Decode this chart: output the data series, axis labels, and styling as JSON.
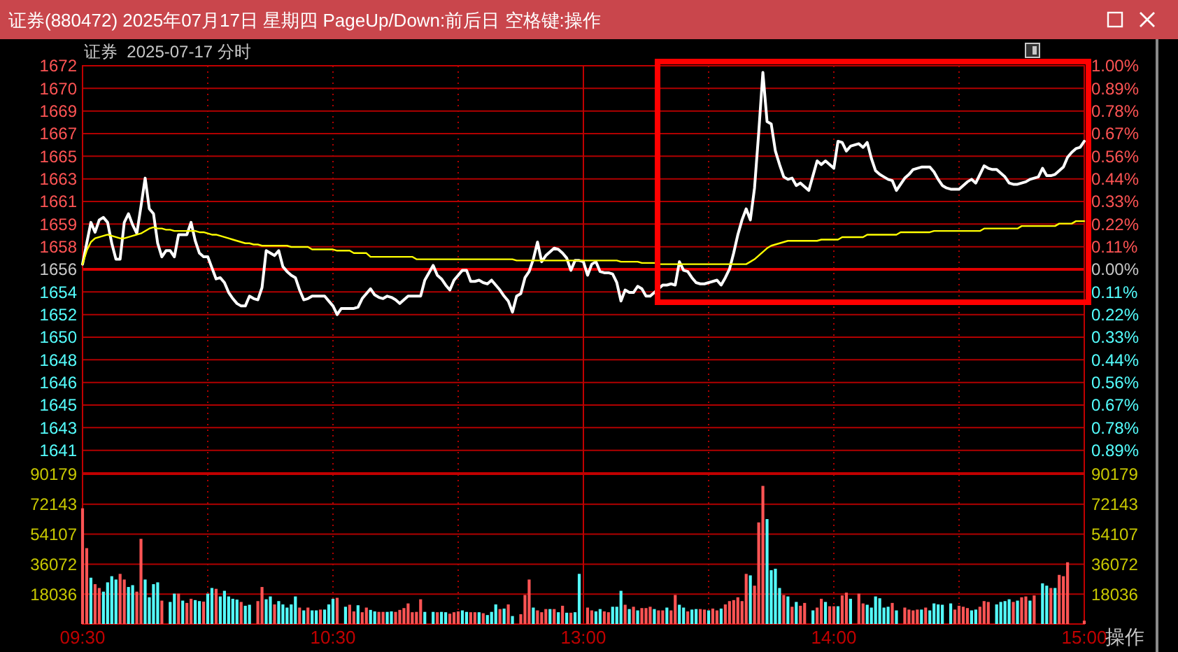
{
  "chart_data": [
    {
      "type": "line",
      "title": "证券(880472) 2025年07月17日 星期四 PageUp/Down:前后日 空格键:操作",
      "subtitle": "证券  2025-07-17 分时",
      "categories": [
        "09:30",
        null,
        null,
        null,
        null,
        null,
        null,
        null,
        null,
        null,
        null,
        null,
        null,
        null,
        null,
        null,
        null,
        null,
        null,
        null,
        null,
        null,
        null,
        null,
        null,
        null,
        null,
        null,
        null,
        null,
        null,
        null,
        null,
        null,
        null,
        null,
        null,
        null,
        null,
        null,
        null,
        null,
        null,
        null,
        null,
        null,
        null,
        null,
        null,
        null,
        null,
        null,
        null,
        null,
        null,
        null,
        null,
        null,
        null,
        null,
        "10:30",
        null,
        null,
        null,
        null,
        null,
        null,
        null,
        null,
        null,
        null,
        null,
        null,
        null,
        null,
        null,
        null,
        null,
        null,
        null,
        null,
        null,
        null,
        null,
        null,
        null,
        null,
        null,
        null,
        null,
        null,
        null,
        null,
        null,
        null,
        null,
        null,
        null,
        null,
        null,
        null,
        null,
        null,
        null,
        null,
        null,
        null,
        null,
        null,
        null,
        null,
        null,
        null,
        null,
        null,
        null,
        null,
        null,
        null,
        null,
        "13:00",
        null,
        null,
        null,
        null,
        null,
        null,
        null,
        null,
        null,
        null,
        null,
        null,
        null,
        null,
        null,
        null,
        null,
        null,
        null,
        null,
        null,
        null,
        null,
        null,
        null,
        null,
        null,
        null,
        null,
        null,
        null,
        null,
        null,
        null,
        null,
        null,
        null,
        null,
        null,
        null,
        null,
        null,
        null,
        null,
        null,
        null,
        null,
        null,
        null,
        null,
        null,
        null,
        null,
        null,
        null,
        null,
        null,
        null,
        null,
        "14:00",
        null,
        null,
        null,
        null,
        null,
        null,
        null,
        null,
        null,
        null,
        null,
        null,
        null,
        null,
        null,
        null,
        null,
        null,
        null,
        null,
        null,
        null,
        null,
        null,
        null,
        null,
        null,
        null,
        null,
        null,
        null,
        null,
        null,
        null,
        null,
        null,
        null,
        null,
        null,
        null,
        null,
        null,
        null,
        null,
        null,
        null,
        null,
        null,
        null,
        null,
        null,
        null,
        null,
        null,
        null,
        null,
        null,
        null,
        null,
        "15:00"
      ],
      "series": [
        {
          "color": "#ffffff",
          "values": [
            1656.1,
            1657.8,
            1659.5,
            1658.7,
            1659.7,
            1659.9,
            1659.5,
            1657.8,
            1656.5,
            1656.5,
            1659.5,
            1660.2,
            1659.3,
            1658.6,
            1660.8,
            1663.1,
            1660.6,
            1660.2,
            1657.8,
            1656.7,
            1657.2,
            1657.2,
            1656.7,
            1658.5,
            1658.5,
            1658.5,
            1659.5,
            1658,
            1657,
            1656.7,
            1656.7,
            1655.8,
            1654.9,
            1655,
            1654.6,
            1653.8,
            1653.3,
            1652.9,
            1652.7,
            1652.7,
            1653.5,
            1653.3,
            1653.2,
            1654.2,
            1657.2,
            1657,
            1656.8,
            1657.2,
            1655.9,
            1655.5,
            1655.2,
            1655,
            1654,
            1653.2,
            1653.3,
            1653.5,
            1653.5,
            1653.5,
            1653.5,
            1653.1,
            1652.7,
            1652,
            1652.5,
            1652.5,
            1652.5,
            1652.5,
            1652.6,
            1653.3,
            1653.7,
            1654.1,
            1653.6,
            1653.4,
            1653.3,
            1653.5,
            1653.4,
            1653.2,
            1652.9,
            1653.2,
            1653.5,
            1653.5,
            1653.5,
            1653.5,
            1654.8,
            1655.4,
            1656,
            1655.2,
            1654.9,
            1654.4,
            1654,
            1654.8,
            1655.2,
            1655.6,
            1655.6,
            1654.7,
            1654.7,
            1654.8,
            1654.6,
            1654.5,
            1654.8,
            1654.4,
            1654,
            1653.5,
            1653.1,
            1652.2,
            1653.5,
            1653.7,
            1655,
            1655.5,
            1656.5,
            1657.9,
            1656.3,
            1656.8,
            1657.1,
            1657.4,
            1657.3,
            1657,
            1656.6,
            1655.6,
            1656.4,
            1656.4,
            1656.3,
            1655.2,
            1656.1,
            1656.3,
            1655.5,
            1655.4,
            1655.4,
            1655.3,
            1654.6,
            1653.1,
            1654,
            1653.8,
            1653.8,
            1654.3,
            1654.1,
            1653.5,
            1653.5,
            1653.8,
            1654.1,
            1654.4,
            1654.4,
            1654.5,
            1654.4,
            1656.3,
            1655.6,
            1655.5,
            1655,
            1654.6,
            1654.5,
            1654.5,
            1654.6,
            1654.7,
            1654.8,
            1654.4,
            1655,
            1655.7,
            1657,
            1658.5,
            1659.7,
            1660.6,
            1659.7,
            1662.3,
            1666.8,
            1671.7,
            1667.7,
            1667.5,
            1665.3,
            1664.2,
            1663.2,
            1663,
            1663.1,
            1662.5,
            1662.7,
            1662.4,
            1662.1,
            1663.3,
            1664.5,
            1664.2,
            1664.5,
            1664.2,
            1663.9,
            1666.1,
            1666,
            1665.3,
            1665.7,
            1665.8,
            1665.9,
            1665.6,
            1666,
            1664.7,
            1663.7,
            1663.4,
            1663.2,
            1663,
            1662.9,
            1662.1,
            1662.6,
            1663.1,
            1663.4,
            1663.8,
            1663.9,
            1664,
            1664,
            1664,
            1663.6,
            1663,
            1662.5,
            1662.3,
            1662.2,
            1662.2,
            1662.2,
            1662.5,
            1662.8,
            1663,
            1662.7,
            1663.4,
            1664.1,
            1663.9,
            1663.8,
            1663.8,
            1663.5,
            1663.2,
            1662.7,
            1662.6,
            1662.6,
            1662.7,
            1662.8,
            1663,
            1663.1,
            1663.2,
            1663.9,
            1663.3,
            1663.3,
            1663.4,
            1663.7,
            1664,
            1664.8,
            1665.2,
            1665.5,
            1665.6,
            1666.1
          ]
        },
        {
          "color": "#ffff00",
          "values": [
            1656.1,
            1657.2,
            1657.9,
            1658.2,
            1658.3,
            1658.4,
            1658.5,
            1658.4,
            1658.3,
            1658.2,
            1658.2,
            1658.3,
            1658.4,
            1658.5,
            1658.6,
            1658.8,
            1659,
            1659.1,
            1659,
            1659,
            1658.9,
            1658.9,
            1658.8,
            1658.8,
            1658.8,
            1658.8,
            1658.8,
            1658.8,
            1658.7,
            1658.7,
            1658.6,
            1658.5,
            1658.5,
            1658.4,
            1658.3,
            1658.2,
            1658.1,
            1658,
            1657.9,
            1657.8,
            1657.8,
            1657.7,
            1657.7,
            1657.6,
            1657.6,
            1657.6,
            1657.6,
            1657.6,
            1657.6,
            1657.6,
            1657.5,
            1657.5,
            1657.5,
            1657.5,
            1657.5,
            1657.3,
            1657.3,
            1657.3,
            1657.3,
            1657.3,
            1657.3,
            1657.2,
            1657.2,
            1657.2,
            1657.2,
            1657,
            1657,
            1657,
            1657,
            1656.7,
            1656.7,
            1656.7,
            1656.7,
            1656.7,
            1656.7,
            1656.7,
            1656.7,
            1656.7,
            1656.7,
            1656.7,
            1656.5,
            1656.5,
            1656.5,
            1656.5,
            1656.5,
            1656.5,
            1656.5,
            1656.5,
            1656.5,
            1656.5,
            1656.5,
            1656.5,
            1656.5,
            1656.5,
            1656.5,
            1656.5,
            1656.5,
            1656.5,
            1656.5,
            1656.5,
            1656.5,
            1656.5,
            1656.5,
            1656.5,
            1656.4,
            1656.4,
            1656.4,
            1656.4,
            1656.4,
            1656.4,
            1656.4,
            1656.4,
            1656.4,
            1656.4,
            1656.4,
            1656.4,
            1656.4,
            1656.4,
            1656.4,
            1656.4,
            1656.4,
            1656.4,
            1656.4,
            1656.4,
            1656.4,
            1656.4,
            1656.4,
            1656.4,
            1656.4,
            1656.3,
            1656.3,
            1656.3,
            1656.3,
            1656.3,
            1656.2,
            1656.2,
            1656.2,
            1656.2,
            1656.1,
            1656.1,
            1656.1,
            1656.1,
            1656.1,
            1656.1,
            1656.1,
            1656.1,
            1656.1,
            1656.1,
            1656.1,
            1656.1,
            1656.1,
            1656.1,
            1656.1,
            1656.1,
            1656.1,
            1656.1,
            1656.1,
            1656.1,
            1656.1,
            1656.1,
            1656.3,
            1656.5,
            1656.8,
            1657.1,
            1657.4,
            1657.6,
            1657.7,
            1657.8,
            1657.9,
            1658,
            1658,
            1658,
            1658,
            1658,
            1658,
            1658,
            1658,
            1658.1,
            1658.1,
            1658.1,
            1658.1,
            1658.1,
            1658.3,
            1658.3,
            1658.3,
            1658.3,
            1658.3,
            1658.3,
            1658.5,
            1658.5,
            1658.5,
            1658.5,
            1658.5,
            1658.5,
            1658.5,
            1658.5,
            1658.7,
            1658.7,
            1658.7,
            1658.7,
            1658.7,
            1658.7,
            1658.7,
            1658.7,
            1658.8,
            1658.8,
            1658.8,
            1658.8,
            1658.8,
            1658.8,
            1658.8,
            1658.8,
            1658.8,
            1658.8,
            1658.8,
            1658.8,
            1659,
            1659,
            1659,
            1659,
            1659,
            1659,
            1659,
            1659,
            1659,
            1659.2,
            1659.2,
            1659.2,
            1659.2,
            1659.2,
            1659.2,
            1659.2,
            1659.2,
            1659.2,
            1659.4,
            1659.4,
            1659.4,
            1659.4,
            1659.6,
            1659.6,
            1659.6
          ]
        }
      ],
      "ylim": [
        1639.12,
        1672.24
      ],
      "yticks": [
        {
          "value": 1672.24,
          "label": "1672"
        },
        {
          "value": 1670.4,
          "label": "1670"
        },
        {
          "value": 1668.56,
          "label": "1669"
        },
        {
          "value": 1666.72,
          "label": "1667"
        },
        {
          "value": 1664.88,
          "label": "1665"
        },
        {
          "value": 1663.04,
          "label": "1663"
        },
        {
          "value": 1661.2,
          "label": "1661"
        },
        {
          "value": 1659.36,
          "label": "1659"
        },
        {
          "value": 1657.52,
          "label": "1658"
        },
        {
          "value": 1655.68,
          "label": "1656"
        },
        {
          "value": 1653.84,
          "label": "1654"
        },
        {
          "value": 1652.0,
          "label": "1652"
        },
        {
          "value": 1650.16,
          "label": "1650"
        },
        {
          "value": 1648.32,
          "label": "1648"
        },
        {
          "value": 1646.48,
          "label": "1646"
        },
        {
          "value": 1644.64,
          "label": "1645"
        },
        {
          "value": 1642.8,
          "label": "1643"
        },
        {
          "value": 1640.96,
          "label": "1641"
        }
      ],
      "y2lim": [
        -1,
        1
      ],
      "y2ticks": [
        {
          "value": 1,
          "label": "1.00%"
        },
        {
          "value": 0.8889,
          "label": "0.89%"
        },
        {
          "value": 0.7778,
          "label": "0.78%"
        },
        {
          "value": 0.6667,
          "label": "0.67%"
        },
        {
          "value": 0.5556,
          "label": "0.56%"
        },
        {
          "value": 0.4444,
          "label": "0.44%"
        },
        {
          "value": 0.3333,
          "label": "0.33%"
        },
        {
          "value": 0.2222,
          "label": "0.22%"
        },
        {
          "value": 0.1111,
          "label": "0.11%"
        },
        {
          "value": 0,
          "label": "0.00%"
        },
        {
          "value": -0.1111,
          "label": "0.11%"
        },
        {
          "value": -0.2222,
          "label": "0.22%"
        },
        {
          "value": -0.3333,
          "label": "0.33%"
        },
        {
          "value": -0.4444,
          "label": "0.44%"
        },
        {
          "value": -0.5556,
          "label": "0.56%"
        },
        {
          "value": -0.6667,
          "label": "0.67%"
        },
        {
          "value": -0.7778,
          "label": "0.78%"
        },
        {
          "value": -0.8889,
          "label": "0.89%"
        }
      ],
      "grid": true,
      "tick_labels": "y",
      "ref_lines": [
        {
          "axis": "y",
          "value": 1655.68,
          "color": "#e00000"
        },
        {
          "axis": "x",
          "value": "13:00",
          "color": "#c00000"
        }
      ]
    },
    {
      "type": "bar",
      "categories": [
        "09:30",
        null,
        null,
        null,
        null,
        null,
        null,
        null,
        null,
        null,
        null,
        null,
        null,
        null,
        null,
        null,
        null,
        null,
        null,
        null,
        null,
        null,
        null,
        null,
        null,
        null,
        null,
        null,
        null,
        null,
        null,
        null,
        null,
        null,
        null,
        null,
        null,
        null,
        null,
        null,
        null,
        null,
        null,
        null,
        null,
        null,
        null,
        null,
        null,
        null,
        null,
        null,
        null,
        null,
        null,
        null,
        null,
        null,
        null,
        null,
        "10:30",
        null,
        null,
        null,
        null,
        null,
        null,
        null,
        null,
        null,
        null,
        null,
        null,
        null,
        null,
        null,
        null,
        null,
        null,
        null,
        null,
        null,
        null,
        null,
        null,
        null,
        null,
        null,
        null,
        null,
        null,
        null,
        null,
        null,
        null,
        null,
        null,
        null,
        null,
        null,
        null,
        null,
        null,
        null,
        null,
        null,
        null,
        null,
        null,
        null,
        null,
        null,
        null,
        null,
        null,
        null,
        null,
        null,
        null,
        null,
        "13:00",
        null,
        null,
        null,
        null,
        null,
        null,
        null,
        null,
        null,
        null,
        null,
        null,
        null,
        null,
        null,
        null,
        null,
        null,
        null,
        null,
        null,
        null,
        null,
        null,
        null,
        null,
        null,
        null,
        null,
        null,
        null,
        null,
        null,
        null,
        null,
        null,
        null,
        null,
        null,
        null,
        null,
        null,
        null,
        null,
        null,
        null,
        null,
        null,
        null,
        null,
        null,
        null,
        null,
        null,
        null,
        null,
        null,
        null,
        null,
        "14:00",
        null,
        null,
        null,
        null,
        null,
        null,
        null,
        null,
        null,
        null,
        null,
        null,
        null,
        null,
        null,
        null,
        null,
        null,
        null,
        null,
        null,
        null,
        null,
        null,
        null,
        null,
        null,
        null,
        null,
        null,
        null,
        null,
        null,
        null,
        null,
        null,
        null,
        null,
        null,
        null,
        null,
        null,
        null,
        null,
        null,
        null,
        null,
        null,
        null,
        null,
        null,
        null,
        null,
        null,
        null,
        null,
        null,
        null,
        null,
        "15:00"
      ],
      "values": [
        69700,
        45700,
        27900,
        24000,
        21700,
        19500,
        25100,
        28800,
        26800,
        30200,
        26800,
        22300,
        23400,
        19500,
        51300,
        26800,
        16100,
        24000,
        25100,
        14100,
        null,
        13300,
        18300,
        18300,
        14100,
        12700,
        15200,
        14400,
        13800,
        13500,
        18300,
        21700,
        21200,
        16600,
        20000,
        16600,
        15200,
        14700,
        13300,
        11000,
        11600,
        null,
        13800,
        22300,
        14900,
        16600,
        11800,
        13800,
        11800,
        9900,
        11800,
        16600,
        9900,
        8200,
        9900,
        8200,
        8200,
        8700,
        8700,
        11800,
        15200,
        15800,
        null,
        10400,
        11600,
        7600,
        11300,
        7100,
        9900,
        8500,
        7600,
        7300,
        7300,
        7300,
        7600,
        7300,
        8500,
        9600,
        12400,
        7100,
        7300,
        14900,
        7300,
        null,
        7300,
        7100,
        7300,
        7100,
        6200,
        7100,
        7600,
        8200,
        7300,
        7100,
        7100,
        7100,
        6500,
        5400,
        7300,
        11800,
        9000,
        9300,
        11800,
        4800,
        null,
        5900,
        17500,
        26800,
        9900,
        8200,
        7100,
        9000,
        9000,
        9000,
        7100,
        11000,
        6800,
        6800,
        7100,
        30200,
        null,
        9900,
        8200,
        7600,
        9000,
        7600,
        7100,
        10400,
        10400,
        20000,
        11600,
        9000,
        10400,
        8200,
        9600,
        9600,
        10400,
        9000,
        8200,
        8200,
        9900,
        8200,
        17500,
        11600,
        9900,
        7600,
        8700,
        9000,
        9000,
        8700,
        8200,
        9300,
        8200,
        9300,
        11800,
        13800,
        14400,
        16100,
        13800,
        30200,
        29300,
        23100,
        61200,
        83200,
        63200,
        32400,
        33300,
        21700,
        17500,
        16600,
        10400,
        13300,
        11000,
        12700,
        null,
        8200,
        9900,
        15200,
        13300,
        10700,
        10700,
        10700,
        17200,
        18900,
        15200,
        null,
        18300,
        12400,
        11600,
        9900,
        16600,
        15500,
        9900,
        10400,
        12700,
        8200,
        null,
        9900,
        8700,
        8200,
        8700,
        8700,
        9900,
        8200,
        12400,
        11800,
        11600,
        null,
        12400,
        8700,
        11000,
        10400,
        9600,
        8200,
        8700,
        10400,
        13800,
        13300,
        null,
        11800,
        13300,
        13800,
        14900,
        13300,
        14100,
        16100,
        16600,
        14100,
        17200,
        null,
        24500,
        23100,
        21700,
        21700,
        29600,
        28800,
        37200,
        null,
        null,
        null,
        2000
      ],
      "colors": [
        "#ff5454",
        "#ff5454",
        "#54ffff",
        "#ff5454",
        "#ff5454",
        "#54ffff",
        "#54ffff",
        "#54ffff",
        "#54ffff",
        "#ff5454",
        "#ff5454",
        "#54ffff",
        "#54ffff",
        "#ff5454",
        "#ff5454",
        "#54ffff",
        "#54ffff",
        "#54ffff",
        "#54ffff",
        "#ff5454",
        null,
        "#54ffff",
        "#54ffff",
        "#ff5454",
        "#54ffff",
        "#ff5454",
        "#ff5454",
        "#54ffff",
        "#54ffff",
        "#ff5454",
        "#54ffff",
        "#54ffff",
        "#ff5454",
        "#54ffff",
        "#54ffff",
        "#54ffff",
        "#54ffff",
        "#54ffff",
        "#ff5454",
        "#54ffff",
        "#54ffff",
        null,
        "#ff5454",
        "#ff5454",
        "#54ffff",
        "#54ffff",
        "#ff5454",
        "#54ffff",
        "#54ffff",
        "#54ffff",
        "#54ffff",
        "#54ffff",
        "#ff5454",
        "#54ffff",
        "#ff5454",
        "#54ffff",
        "#54ffff",
        "#ff5454",
        "#54ffff",
        "#54ffff",
        "#54ffff",
        "#ff5454",
        null,
        "#54ffff",
        "#ff5454",
        "#ff5454",
        "#54ffff",
        "#ff5454",
        "#ff5454",
        "#54ffff",
        "#54ffff",
        "#ff5454",
        "#ff5454",
        "#54ffff",
        "#54ffff",
        "#ff5454",
        "#ff5454",
        "#ff5454",
        "#ff5454",
        "#ff5454",
        "#ff5454",
        "#ff5454",
        "#54ffff",
        null,
        "#54ffff",
        "#ff5454",
        "#54ffff",
        "#54ffff",
        "#ff5454",
        "#ff5454",
        "#ff5454",
        "#54ffff",
        "#54ffff",
        "#ff5454",
        "#ff5454",
        "#54ffff",
        "#ff5454",
        "#54ffff",
        "#54ffff",
        "#54ffff",
        "#ff5454",
        "#54ffff",
        "#ff5454",
        "#54ffff",
        null,
        "#ff5454",
        "#ff5454",
        "#ff5454",
        "#54ffff",
        "#ff5454",
        "#ff5454",
        "#ff5454",
        "#54ffff",
        "#ff5454",
        "#54ffff",
        "#ff5454",
        "#54ffff",
        "#ff5454",
        "#54ffff",
        "#54ffff",
        null,
        "#ff5454",
        "#ff5454",
        "#54ffff",
        "#54ffff",
        "#ff5454",
        "#ff5454",
        "#54ffff",
        "#54ffff",
        "#54ffff",
        "#ff5454",
        "#54ffff",
        "#ff5454",
        "#54ffff",
        "#ff5454",
        "#ff5454",
        "#ff5454",
        "#54ffff",
        "#ff5454",
        "#ff5454",
        "#54ffff",
        "#ff5454",
        "#ff5454",
        "#54ffff",
        "#54ffff",
        "#ff5454",
        "#54ffff",
        "#54ffff",
        "#ff5454",
        "#ff5454",
        "#54ffff",
        "#ff5454",
        "#ff5454",
        "#54ffff",
        "#ff5454",
        "#ff5454",
        "#ff5454",
        "#ff5454",
        "#ff5454",
        "#ff5454",
        "#54ffff",
        "#ff5454",
        "#ff5454",
        "#ff5454",
        "#54ffff",
        "#54ffff",
        "#54ffff",
        "#54ffff",
        "#ff5454",
        "#54ffff",
        "#ff5454",
        "#54ffff",
        "#ff5454",
        "#ff5454",
        null,
        "#54ffff",
        "#ff5454",
        "#ff5454",
        "#54ffff",
        "#ff5454",
        "#ff5454",
        "#54ffff",
        "#ff5454",
        "#ff5454",
        "#54ffff",
        null,
        "#ff5454",
        "#ff5454",
        "#54ffff",
        "#54ffff",
        "#54ffff",
        "#54ffff",
        "#54ffff",
        "#54ffff",
        "#ff5454",
        "#54ffff",
        null,
        "#ff5454",
        "#ff5454",
        "#ff5454",
        "#ff5454",
        "#54ffff",
        "#ff5454",
        "#54ffff",
        "#54ffff",
        "#54ffff",
        "#54ffff",
        null,
        "#54ffff",
        "#ff5454",
        "#ff5454",
        "#ff5454",
        "#ff5454",
        "#54ffff",
        "#54ffff",
        "#ff5454",
        "#ff5454",
        "#ff5454",
        null,
        "#54ffff",
        "#54ffff",
        "#54ffff",
        "#54ffff",
        "#ff5454",
        "#54ffff",
        "#ff5454",
        "#ff5454",
        "#54ffff",
        "#ff5454",
        null,
        "#54ffff",
        "#54ffff",
        "#ff5454",
        "#54ffff",
        "#ff5454",
        "#ff5454",
        "#ff5454",
        null,
        null,
        null,
        "#ff5454"
      ],
      "ylim": [
        0,
        90179
      ],
      "yticks": [
        18036,
        36072,
        54107,
        72143,
        90179
      ],
      "y2lim": [
        0,
        90179
      ],
      "y2ticks": [
        18036,
        36072,
        54107,
        72143,
        90179
      ],
      "grid": true,
      "ref_lines": [
        {
          "axis": "x",
          "value": "13:00",
          "color": "#c00000"
        }
      ],
      "annotations": [
        "操作"
      ]
    }
  ]
}
